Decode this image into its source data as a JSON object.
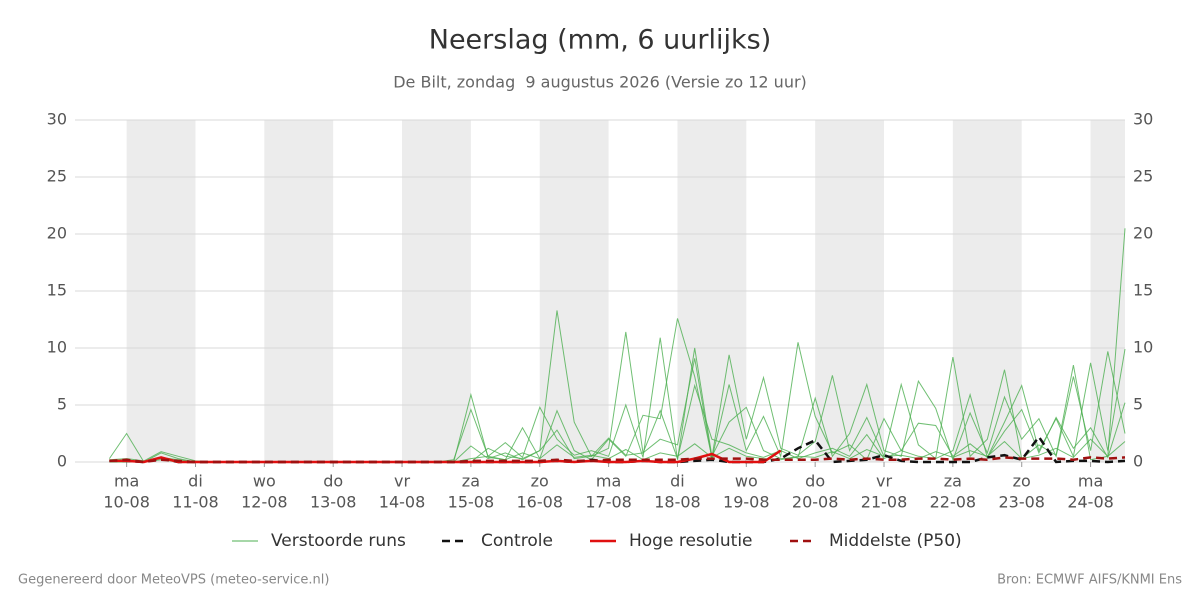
{
  "chart_data": {
    "type": "line",
    "title": "Neerslag (mm, 6 uurlijks)",
    "subtitle": "De Bilt, zondag  9 augustus 2026 (Versie zo 12 uur)",
    "footer_left": "Gegenereerd door MeteoVPS (meteo-service.nl)",
    "footer_right": "Bron: ECMWF AIFS/KNMI Ens",
    "xlim": [
      -0.75,
      14.5
    ],
    "xticks": [
      {
        "value": 0,
        "label": "ma",
        "date": "10-08"
      },
      {
        "value": 1,
        "label": "di",
        "date": "11-08"
      },
      {
        "value": 2,
        "label": "wo",
        "date": "12-08"
      },
      {
        "value": 3,
        "label": "do",
        "date": "13-08"
      },
      {
        "value": 4,
        "label": "vr",
        "date": "14-08"
      },
      {
        "value": 5,
        "label": "za",
        "date": "15-08"
      },
      {
        "value": 6,
        "label": "zo",
        "date": "16-08"
      },
      {
        "value": 7,
        "label": "ma",
        "date": "17-08"
      },
      {
        "value": 8,
        "label": "di",
        "date": "18-08"
      },
      {
        "value": 9,
        "label": "wo",
        "date": "19-08"
      },
      {
        "value": 10,
        "label": "do",
        "date": "20-08"
      },
      {
        "value": 11,
        "label": "vr",
        "date": "21-08"
      },
      {
        "value": 12,
        "label": "za",
        "date": "22-08"
      },
      {
        "value": 13,
        "label": "zo",
        "date": "23-08"
      },
      {
        "value": 14,
        "label": "ma",
        "date": "24-08"
      }
    ],
    "shade_alternate_days": true,
    "ylim": [
      0,
      30
    ],
    "yticks": [
      0,
      5,
      10,
      15,
      20,
      25,
      30
    ],
    "grid": true,
    "right_axis": true,
    "x": [
      -0.25,
      0,
      0.25,
      0.5,
      0.75,
      1,
      1.25,
      1.5,
      1.75,
      2,
      2.25,
      2.5,
      2.75,
      3,
      3.25,
      3.5,
      3.75,
      4,
      4.25,
      4.5,
      4.75,
      5,
      5.25,
      5.5,
      5.75,
      6,
      6.25,
      6.5,
      6.75,
      7,
      7.25,
      7.5,
      7.75,
      8,
      8.25,
      8.5,
      8.75,
      9,
      9.25,
      9.5,
      9.75,
      10,
      10.25,
      10.5,
      10.75,
      11,
      11.25,
      11.5,
      11.75,
      12,
      12.25,
      12.5,
      12.75,
      13,
      13.25,
      13.5,
      13.75,
      14,
      14.25,
      14.5
    ],
    "ensemble": {
      "name": "Verstoorde runs",
      "color": "#4caf50",
      "members": [
        [
          0.3,
          2.5,
          0,
          0.8,
          0.3,
          0,
          0,
          0,
          0,
          0,
          0,
          0,
          0,
          0,
          0,
          0,
          0,
          0,
          0,
          0,
          0,
          0,
          1.2,
          0.5,
          0.3,
          1.0,
          13.3,
          3.5,
          0.5,
          1.2,
          11.4,
          0.8,
          2.0,
          1.5,
          9.1,
          0.3,
          6.8,
          1.0,
          4.0,
          0.5,
          10.5,
          4.0,
          0.8,
          1.5,
          0.2,
          3.8,
          1.0,
          0.5,
          0.3,
          9.2,
          0.5,
          2.0,
          8.1,
          0.3,
          1.5,
          0.6,
          8.5,
          0.2,
          0.5,
          20.5
        ],
        [
          0.2,
          0.3,
          0.1,
          0.9,
          0.5,
          0.1,
          0,
          0,
          0,
          0,
          0,
          0,
          0,
          0,
          0,
          0,
          0,
          0,
          0,
          0,
          0,
          5.9,
          0.4,
          0.2,
          3.0,
          0.3,
          4.5,
          1.0,
          0.2,
          2.0,
          0.5,
          4.1,
          3.8,
          12.6,
          7.5,
          0.4,
          9.4,
          2.0,
          7.4,
          1.2,
          0.6,
          1.8,
          7.6,
          1.0,
          3.9,
          0.5,
          6.8,
          1.5,
          0.3,
          1.0,
          5.9,
          0.4,
          3.5,
          6.7,
          1.0,
          3.8,
          0.5,
          8.7,
          1.0,
          9.9
        ],
        [
          0.1,
          0.2,
          0,
          0.4,
          0.2,
          0,
          0,
          0,
          0,
          0,
          0,
          0,
          0,
          0,
          0,
          0,
          0,
          0,
          0,
          0,
          0.2,
          4.6,
          0.5,
          1.7,
          0.4,
          4.8,
          2.0,
          0.6,
          1.0,
          0.5,
          5.0,
          0.4,
          10.9,
          0.2,
          10.0,
          0.5,
          3.5,
          4.8,
          1.0,
          0.3,
          0.4,
          5.6,
          0.5,
          2.5,
          6.8,
          1.0,
          0.5,
          7.1,
          4.7,
          0.2,
          4.3,
          0.8,
          5.7,
          2.0,
          3.8,
          0.5,
          7.5,
          1.0,
          9.7,
          2.5
        ],
        [
          0,
          0,
          0.1,
          0.3,
          0,
          0,
          0,
          0,
          0,
          0,
          0,
          0,
          0,
          0,
          0,
          0,
          0,
          0,
          0,
          0,
          0,
          1.4,
          0.3,
          0.8,
          0.2,
          1.0,
          2.8,
          0.3,
          0.5,
          2.1,
          0.6,
          0.8,
          4.5,
          0.3,
          6.7,
          2.0,
          1.5,
          0.8,
          0.4,
          1.0,
          0.3,
          0.8,
          1.2,
          0.5,
          2.4,
          0.3,
          1.0,
          3.4,
          3.2,
          0.5,
          1.6,
          0.4,
          2.7,
          4.6,
          0.8,
          3.9,
          1.2,
          3.0,
          0.4,
          5.2
        ],
        [
          0,
          0,
          0,
          0.2,
          0,
          0,
          0,
          0,
          0,
          0,
          0,
          0,
          0,
          0,
          0,
          0,
          0,
          0,
          0,
          0,
          0,
          0.3,
          0.5,
          0.2,
          0.8,
          0.3,
          1.5,
          0.4,
          0.6,
          0.3,
          1.1,
          0.2,
          0.8,
          0.5,
          1.6,
          0.4,
          1.2,
          0.5,
          0.3,
          0.2,
          0.5,
          0.4,
          0.9,
          0.3,
          1.1,
          0.5,
          0.6,
          0.3,
          0.9,
          0.4,
          1.0,
          0.5,
          1.8,
          0.3,
          0.6,
          1.2,
          0.4,
          2.0,
          0.5,
          1.8
        ]
      ]
    },
    "series": [
      {
        "name": "Controle",
        "color": "#111111",
        "dash": true,
        "values": [
          0.1,
          0.1,
          0,
          0.3,
          0,
          0,
          0,
          0,
          0,
          0,
          0,
          0,
          0,
          0,
          0,
          0,
          0,
          0,
          0,
          0,
          0,
          0,
          0,
          0,
          0,
          0,
          0.1,
          0,
          0.2,
          0,
          0,
          0.1,
          0,
          0,
          0.1,
          0.2,
          0,
          0,
          0,
          0.3,
          1.2,
          1.9,
          0,
          0.1,
          0.2,
          0.6,
          0.1,
          0,
          0,
          0,
          0,
          0.4,
          0.6,
          0.2,
          2.2,
          0,
          0.1,
          0.1,
          0,
          0.1
        ]
      },
      {
        "name": "Hoge resolutie",
        "color": "#e01010",
        "dash": false,
        "values": [
          0.1,
          0.1,
          0,
          0.4,
          0,
          0,
          0,
          0,
          0,
          0,
          0,
          0,
          0,
          0,
          0,
          0,
          0,
          0,
          0,
          0,
          0,
          0,
          0,
          0,
          0,
          0,
          0.1,
          0,
          0.1,
          0,
          0,
          0.1,
          0,
          0,
          0.3,
          0.7,
          0,
          0,
          0,
          1.0,
          null,
          null,
          null,
          null,
          null,
          null,
          null,
          null,
          null,
          null,
          null,
          null,
          null,
          null,
          null,
          null,
          null,
          null,
          null,
          null
        ]
      },
      {
        "name": "Middelste (P50)",
        "color": "#a01010",
        "dash": true,
        "values": [
          0.1,
          0.2,
          0,
          0.2,
          0.1,
          0,
          0,
          0,
          0,
          0,
          0,
          0,
          0,
          0,
          0,
          0,
          0,
          0,
          0,
          0,
          0,
          0.1,
          0.1,
          0.1,
          0.1,
          0.1,
          0.2,
          0.1,
          0.1,
          0.2,
          0.2,
          0.2,
          0.2,
          0.2,
          0.3,
          0.3,
          0.3,
          0.3,
          0.2,
          0.2,
          0.2,
          0.2,
          0.3,
          0.2,
          0.3,
          0.2,
          0.2,
          0.3,
          0.3,
          0.2,
          0.3,
          0.2,
          0.4,
          0.3,
          0.3,
          0.3,
          0.2,
          0.4,
          0.3,
          0.4
        ]
      }
    ]
  }
}
